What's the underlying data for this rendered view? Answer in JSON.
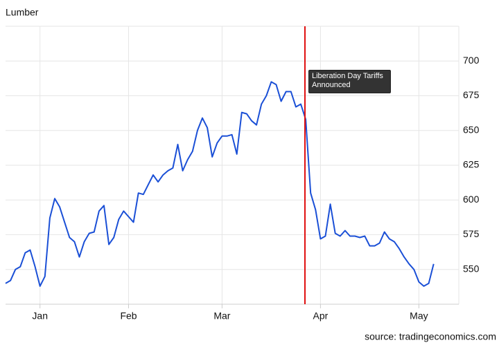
{
  "chart_data": {
    "type": "line",
    "title": "Lumber",
    "source": "source: tradingeconomics.com",
    "annotation": "Liberation Day Tariffs Announced",
    "categories": [
      null,
      null,
      null,
      null,
      null,
      null,
      null,
      "Jan",
      null,
      null,
      null,
      null,
      null,
      null,
      null,
      null,
      null,
      null,
      null,
      null,
      null,
      null,
      null,
      null,
      null,
      "Feb",
      null,
      null,
      null,
      null,
      null,
      null,
      null,
      null,
      null,
      null,
      null,
      null,
      null,
      null,
      null,
      null,
      null,
      null,
      "Mar",
      null,
      null,
      null,
      null,
      null,
      null,
      null,
      null,
      null,
      null,
      null,
      null,
      null,
      null,
      null,
      null,
      null,
      null,
      null,
      "Apr",
      null,
      null,
      null,
      null,
      null,
      null,
      null,
      null,
      null,
      null,
      null,
      null,
      null,
      null,
      null,
      null,
      null,
      null,
      null,
      "May",
      null,
      null,
      null
    ],
    "values": [
      540,
      542,
      550,
      552,
      562,
      564,
      552,
      538,
      545,
      587,
      601,
      595,
      584,
      573,
      570,
      559,
      570,
      576,
      577,
      592,
      596,
      568,
      573,
      586,
      592,
      588,
      584,
      605,
      604,
      611,
      618,
      613,
      618,
      621,
      623,
      640,
      621,
      629,
      635,
      650,
      659,
      652,
      631,
      641,
      646,
      646,
      647,
      633,
      663,
      662,
      657,
      654,
      669,
      675,
      685,
      683,
      671,
      678,
      678,
      667,
      669,
      658,
      605,
      593,
      572,
      574,
      597,
      576,
      574,
      578,
      574,
      574,
      573,
      574,
      567,
      567,
      569,
      577,
      572,
      570,
      565,
      559,
      554,
      550,
      541,
      538,
      540,
      554
    ],
    "color": "#1a4fd6",
    "annotation_color": "#e01010",
    "ylim": [
      525,
      725
    ],
    "yticks": [
      550,
      575,
      600,
      625,
      650,
      675,
      700
    ],
    "grid": true
  }
}
